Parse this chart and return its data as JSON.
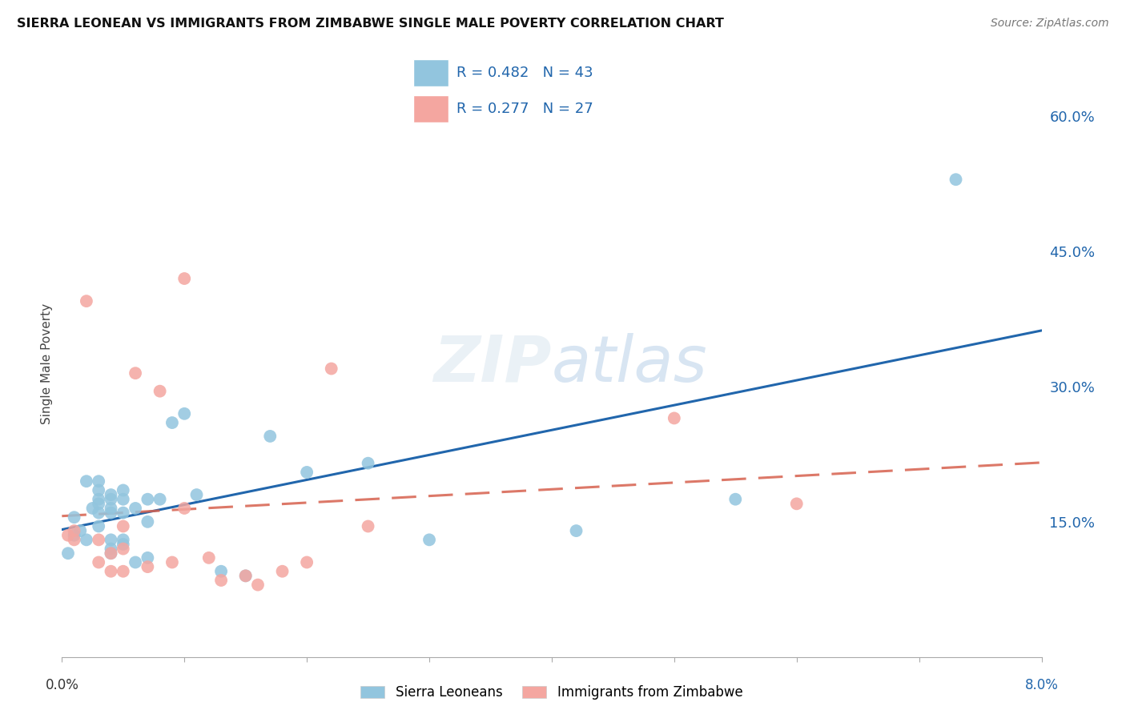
{
  "title": "SIERRA LEONEAN VS IMMIGRANTS FROM ZIMBABWE SINGLE MALE POVERTY CORRELATION CHART",
  "source": "Source: ZipAtlas.com",
  "ylabel": "Single Male Poverty",
  "legend1_label": "R = 0.482   N = 43",
  "legend2_label": "R = 0.277   N = 27",
  "sierra_color": "#92c5de",
  "zimbabwe_color": "#f4a6a0",
  "sierra_line_color": "#2166ac",
  "zimbabwe_line_color": "#d6604d",
  "sierra_points_x": [
    0.0005,
    0.001,
    0.001,
    0.0015,
    0.002,
    0.002,
    0.0025,
    0.003,
    0.003,
    0.003,
    0.003,
    0.003,
    0.003,
    0.004,
    0.004,
    0.004,
    0.004,
    0.004,
    0.004,
    0.004,
    0.005,
    0.005,
    0.005,
    0.005,
    0.005,
    0.006,
    0.006,
    0.007,
    0.007,
    0.007,
    0.008,
    0.009,
    0.01,
    0.011,
    0.013,
    0.015,
    0.017,
    0.02,
    0.025,
    0.03,
    0.042,
    0.055,
    0.073
  ],
  "sierra_points_y": [
    0.115,
    0.135,
    0.155,
    0.14,
    0.13,
    0.195,
    0.165,
    0.17,
    0.175,
    0.185,
    0.195,
    0.16,
    0.145,
    0.115,
    0.12,
    0.13,
    0.16,
    0.165,
    0.175,
    0.18,
    0.125,
    0.13,
    0.16,
    0.175,
    0.185,
    0.105,
    0.165,
    0.11,
    0.15,
    0.175,
    0.175,
    0.26,
    0.27,
    0.18,
    0.095,
    0.09,
    0.245,
    0.205,
    0.215,
    0.13,
    0.14,
    0.175,
    0.53
  ],
  "zimbabwe_points_x": [
    0.0005,
    0.001,
    0.001,
    0.002,
    0.003,
    0.003,
    0.004,
    0.004,
    0.005,
    0.005,
    0.005,
    0.006,
    0.007,
    0.008,
    0.009,
    0.01,
    0.01,
    0.012,
    0.013,
    0.015,
    0.016,
    0.018,
    0.02,
    0.022,
    0.025,
    0.05,
    0.06
  ],
  "zimbabwe_points_y": [
    0.135,
    0.13,
    0.14,
    0.395,
    0.105,
    0.13,
    0.095,
    0.115,
    0.095,
    0.12,
    0.145,
    0.315,
    0.1,
    0.295,
    0.105,
    0.42,
    0.165,
    0.11,
    0.085,
    0.09,
    0.08,
    0.095,
    0.105,
    0.32,
    0.145,
    0.265,
    0.17
  ],
  "xlim": [
    0.0,
    0.08
  ],
  "ylim": [
    -0.02,
    0.65
  ],
  "plot_ylim": [
    0.0,
    0.65
  ],
  "right_yticks": [
    0.0,
    0.15,
    0.3,
    0.45,
    0.6
  ],
  "right_yticklabels": [
    "",
    "15.0%",
    "30.0%",
    "45.0%",
    "60.0%"
  ],
  "background_color": "#ffffff",
  "grid_color": "#d0d0d0"
}
